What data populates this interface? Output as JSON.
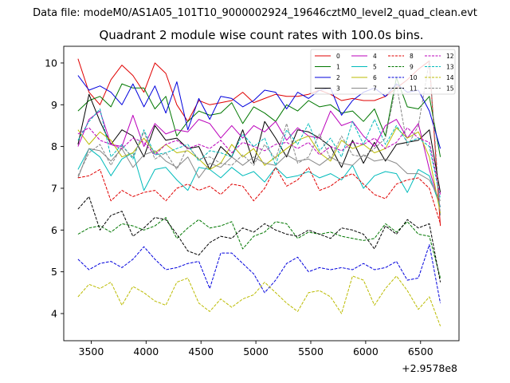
{
  "figure": {
    "suptitle": "Data file: modeM0/AS1A05_101T10_9000002924_19646cztM0_level2_quad_clean.evt"
  },
  "chart_data": {
    "type": "line",
    "title": "Quadrant 2 module wise count rates with 100.0s bins.",
    "xlabel": "",
    "ylabel": "",
    "x_offset_label": "+2.9578e8",
    "xlim": [
      3250,
      6850
    ],
    "ylim": [
      3.35,
      10.4
    ],
    "xticks": [
      3500,
      4000,
      4500,
      5000,
      5500,
      6000,
      6500
    ],
    "yticks": [
      4,
      5,
      6,
      7,
      8,
      9,
      10
    ],
    "x": [
      3380,
      3480,
      3580,
      3680,
      3780,
      3880,
      3980,
      4080,
      4180,
      4280,
      4380,
      4480,
      4580,
      4680,
      4780,
      4880,
      4980,
      5080,
      5180,
      5280,
      5380,
      5480,
      5580,
      5680,
      5780,
      5880,
      5980,
      6080,
      6180,
      6280,
      6380,
      6480,
      6580,
      6680
    ],
    "legend_position": "upper right",
    "series": [
      {
        "name": "0",
        "color": "#e00000",
        "dash": "solid",
        "values": [
          10.1,
          9.3,
          9.0,
          9.6,
          9.95,
          9.7,
          9.3,
          10.0,
          9.75,
          9.0,
          8.6,
          9.1,
          9.0,
          9.05,
          9.1,
          9.3,
          9.05,
          9.15,
          9.25,
          9.2,
          9.2,
          9.25,
          9.35,
          9.25,
          9.1,
          9.15,
          9.1,
          9.1,
          9.2,
          9.4,
          9.6,
          9.85,
          10.05,
          6.1
        ]
      },
      {
        "name": "1",
        "color": "#007700",
        "dash": "solid",
        "values": [
          8.85,
          9.1,
          9.2,
          8.95,
          9.5,
          9.4,
          9.4,
          8.9,
          9.2,
          8.25,
          8.6,
          8.85,
          8.75,
          8.8,
          9.05,
          8.55,
          8.95,
          8.8,
          8.6,
          9.0,
          8.85,
          9.1,
          8.95,
          9.0,
          8.8,
          8.85,
          8.6,
          8.9,
          8.25,
          9.65,
          8.95,
          8.9,
          9.2,
          7.75
        ]
      },
      {
        "name": "2",
        "color": "#0000dd",
        "dash": "solid",
        "values": [
          9.7,
          9.35,
          9.45,
          9.3,
          9.0,
          9.5,
          8.95,
          9.45,
          8.8,
          9.55,
          8.4,
          9.15,
          8.65,
          9.2,
          9.15,
          8.95,
          9.1,
          9.35,
          9.3,
          8.9,
          9.3,
          9.15,
          9.35,
          9.4,
          8.75,
          9.1,
          9.3,
          9.4,
          9.2,
          9.5,
          9.3,
          9.35,
          8.85,
          7.95
        ]
      },
      {
        "name": "3",
        "color": "#000000",
        "dash": "solid",
        "values": [
          8.05,
          9.25,
          8.6,
          8.05,
          8.4,
          8.25,
          7.75,
          8.5,
          8.15,
          8.2,
          7.95,
          8.0,
          7.45,
          8.0,
          7.75,
          8.4,
          7.6,
          8.6,
          8.2,
          7.75,
          8.4,
          8.35,
          8.2,
          8.0,
          7.5,
          8.15,
          7.6,
          8.1,
          7.65,
          8.05,
          8.1,
          8.15,
          8.4,
          6.9
        ]
      },
      {
        "name": "4",
        "color": "#bb00bb",
        "dash": "solid",
        "values": [
          8.0,
          8.65,
          8.85,
          8.05,
          8.0,
          8.75,
          8.0,
          8.55,
          8.3,
          8.4,
          8.35,
          8.65,
          8.55,
          8.2,
          8.5,
          8.2,
          8.5,
          8.35,
          8.6,
          8.15,
          8.45,
          8.25,
          8.2,
          8.85,
          8.5,
          8.6,
          8.25,
          8.0,
          8.5,
          8.65,
          8.2,
          8.55,
          7.45,
          6.55
        ]
      },
      {
        "name": "5",
        "color": "#00bbbb",
        "dash": "solid",
        "values": [
          7.45,
          7.95,
          7.75,
          7.3,
          7.7,
          7.85,
          6.95,
          7.45,
          7.5,
          7.2,
          6.95,
          7.5,
          7.45,
          7.25,
          7.5,
          7.3,
          7.4,
          7.15,
          7.5,
          7.25,
          7.3,
          7.4,
          7.25,
          7.35,
          7.2,
          7.55,
          7.0,
          7.3,
          7.4,
          7.35,
          6.9,
          7.45,
          7.3,
          6.55
        ]
      },
      {
        "name": "6",
        "color": "#bbbb00",
        "dash": "solid",
        "values": [
          8.4,
          8.05,
          8.35,
          8.15,
          7.75,
          7.85,
          8.2,
          7.85,
          8.05,
          7.85,
          7.9,
          7.7,
          7.45,
          7.6,
          8.05,
          7.75,
          7.95,
          7.55,
          7.75,
          7.95,
          8.15,
          8.25,
          7.85,
          7.65,
          8.15,
          7.95,
          8.05,
          7.85,
          7.95,
          8.45,
          8.2,
          8.35,
          7.75,
          6.4
        ]
      },
      {
        "name": "7",
        "color": "#888888",
        "dash": "solid",
        "values": [
          7.25,
          7.95,
          7.9,
          7.65,
          7.95,
          7.5,
          7.8,
          7.9,
          7.65,
          7.5,
          7.75,
          7.25,
          7.6,
          7.5,
          7.75,
          7.55,
          7.75,
          7.6,
          7.55,
          7.8,
          7.65,
          7.7,
          7.55,
          7.75,
          7.6,
          7.55,
          7.8,
          7.65,
          7.7,
          7.6,
          7.35,
          7.35,
          7.2,
          6.7
        ]
      },
      {
        "name": "8",
        "color": "#e00000",
        "dash": "dashed",
        "values": [
          7.25,
          7.3,
          7.45,
          6.7,
          6.95,
          6.8,
          6.9,
          6.95,
          6.7,
          7.0,
          7.1,
          6.95,
          7.05,
          6.85,
          7.1,
          7.05,
          6.7,
          7.0,
          7.5,
          7.05,
          7.2,
          7.5,
          6.95,
          7.05,
          7.25,
          7.35,
          7.1,
          6.85,
          6.75,
          7.1,
          7.2,
          7.25,
          7.0,
          6.15
        ]
      },
      {
        "name": "9",
        "color": "#007700",
        "dash": "dashed",
        "values": [
          5.9,
          6.05,
          6.1,
          5.95,
          6.15,
          6.1,
          6.0,
          6.1,
          6.3,
          5.8,
          6.05,
          6.25,
          6.05,
          6.1,
          6.2,
          5.55,
          5.85,
          5.95,
          6.2,
          6.15,
          5.8,
          5.95,
          5.9,
          5.95,
          5.85,
          5.8,
          5.75,
          5.8,
          6.15,
          5.95,
          6.2,
          5.9,
          5.85,
          4.85
        ]
      },
      {
        "name": "10",
        "color": "#0000dd",
        "dash": "dashed",
        "values": [
          5.3,
          5.05,
          5.2,
          5.25,
          5.1,
          5.3,
          5.6,
          5.3,
          5.05,
          5.1,
          5.2,
          5.25,
          4.6,
          5.45,
          5.45,
          5.2,
          4.95,
          4.5,
          4.8,
          5.2,
          5.35,
          5.0,
          5.1,
          5.05,
          5.1,
          5.05,
          5.2,
          5.05,
          5.1,
          5.25,
          4.8,
          4.85,
          5.65,
          4.25
        ]
      },
      {
        "name": "11",
        "color": "#000000",
        "dash": "dashed",
        "values": [
          6.5,
          6.8,
          6.0,
          6.35,
          6.45,
          5.85,
          6.05,
          6.3,
          6.25,
          5.9,
          5.5,
          5.4,
          5.7,
          5.85,
          5.8,
          6.05,
          5.95,
          6.15,
          6.0,
          5.9,
          5.85,
          6.0,
          5.9,
          5.8,
          6.05,
          6.0,
          5.9,
          5.55,
          6.1,
          5.9,
          6.25,
          6.05,
          6.15,
          4.75
        ]
      },
      {
        "name": "12",
        "color": "#bb00bb",
        "dash": "dashed",
        "values": [
          8.3,
          8.45,
          8.15,
          8.05,
          7.95,
          8.2,
          8.1,
          7.8,
          8.05,
          8.15,
          7.95,
          8.05,
          7.95,
          8.15,
          7.85,
          8.1,
          8.0,
          7.9,
          8.05,
          8.1,
          7.95,
          8.1,
          7.8,
          8.0,
          7.9,
          8.1,
          8.05,
          8.2,
          7.95,
          8.1,
          8.45,
          8.2,
          8.1,
          6.85
        ]
      },
      {
        "name": "13",
        "color": "#00bbbb",
        "dash": "dashed",
        "values": [
          8.15,
          8.6,
          8.9,
          7.75,
          8.05,
          7.7,
          8.4,
          7.8,
          7.85,
          7.95,
          8.05,
          7.65,
          7.9,
          7.85,
          7.75,
          8.3,
          8.0,
          8.2,
          7.55,
          8.4,
          8.05,
          8.55,
          7.9,
          8.2,
          7.75,
          8.6,
          8.05,
          8.65,
          8.05,
          8.5,
          8.1,
          8.2,
          8.0,
          6.75
        ]
      },
      {
        "name": "14",
        "color": "#bbbb00",
        "dash": "dashed",
        "values": [
          4.4,
          4.7,
          4.6,
          4.75,
          4.2,
          4.65,
          4.5,
          4.3,
          4.2,
          4.75,
          4.85,
          4.25,
          4.05,
          4.35,
          4.15,
          4.35,
          4.45,
          4.75,
          4.5,
          4.25,
          4.05,
          4.5,
          4.55,
          4.4,
          4.0,
          4.9,
          4.8,
          4.2,
          4.6,
          4.9,
          4.55,
          4.1,
          4.4,
          3.7
        ]
      },
      {
        "name": "15",
        "color": "#888888",
        "dash": "dashed",
        "values": [
          7.3,
          7.85,
          8.05,
          7.55,
          8.0,
          7.75,
          8.35,
          7.7,
          7.85,
          7.45,
          8.0,
          7.7,
          7.75,
          7.6,
          7.55,
          7.8,
          7.55,
          8.05,
          7.7,
          8.55,
          7.6,
          7.75,
          8.3,
          7.7,
          8.25,
          7.8,
          7.75,
          7.95,
          8.2,
          9.5,
          8.0,
          8.5,
          10.05,
          6.35
        ]
      }
    ]
  }
}
